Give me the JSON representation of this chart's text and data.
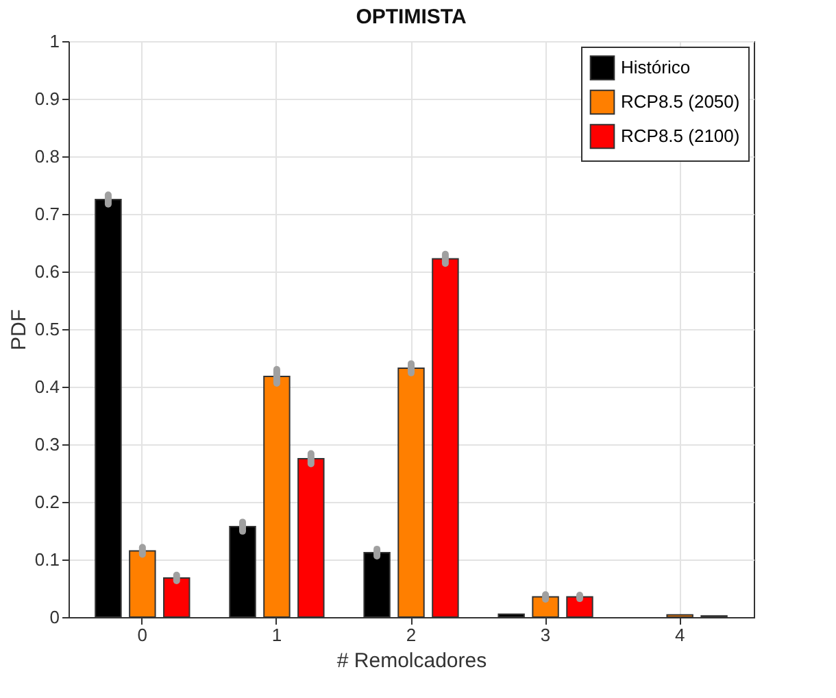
{
  "chart_data": {
    "type": "bar",
    "title": "OPTIMISTA",
    "xlabel": "# Remolcadores",
    "ylabel": "PDF",
    "categories": [
      "0",
      "1",
      "2",
      "3",
      "4"
    ],
    "series": [
      {
        "name": "Histórico",
        "color": "#000000",
        "values": [
          0.725,
          0.157,
          0.112,
          0.005,
          null
        ],
        "errors": [
          0.008,
          0.008,
          0.006,
          null,
          null
        ]
      },
      {
        "name": "RCP8.5 (2050)",
        "color": "#ff7f00",
        "values": [
          0.115,
          0.418,
          0.432,
          0.035,
          0.004
        ],
        "errors": [
          0.006,
          0.012,
          0.008,
          0.004,
          null
        ]
      },
      {
        "name": "RCP8.5 (2100)",
        "color": "#ff0000",
        "values": [
          0.068,
          0.275,
          0.622,
          0.035,
          0.002
        ],
        "errors": [
          0.005,
          0.009,
          0.008,
          0.003,
          null
        ]
      }
    ],
    "ylim": [
      0,
      1
    ],
    "yticks": [
      0,
      0.1,
      0.2,
      0.3,
      0.4,
      0.5,
      0.6,
      0.7,
      0.8,
      0.9,
      1
    ],
    "grid": true,
    "legend": "top right"
  }
}
